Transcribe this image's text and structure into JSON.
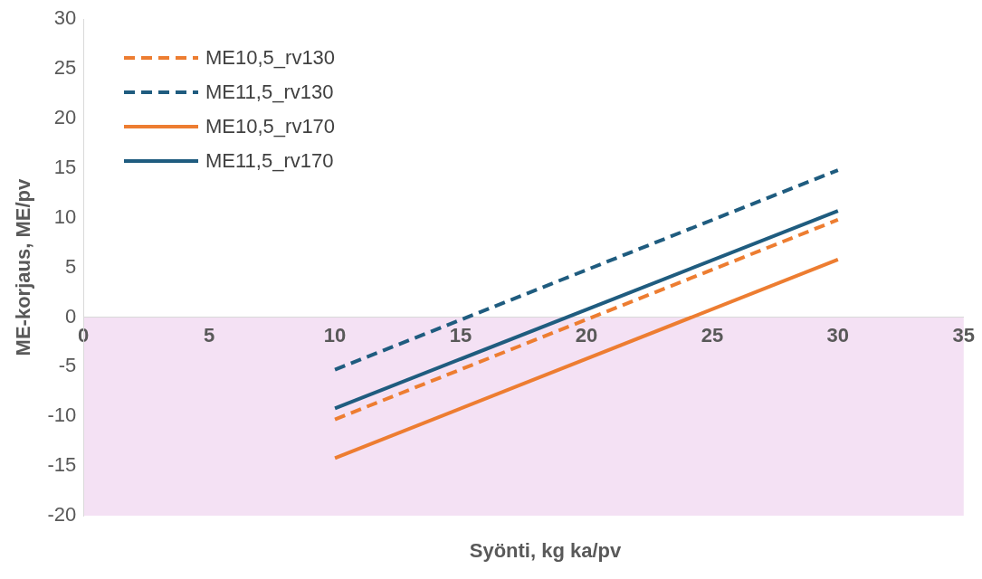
{
  "chart_data": {
    "type": "line",
    "xlabel": "Syönti, kg ka/pv",
    "ylabel": "ME-korjaus, ME/pv",
    "x": [
      10,
      30
    ],
    "series": [
      {
        "name": "ME10,5_rv130",
        "color": "#ed7d31",
        "line_style": "dashed",
        "values": [
          -10.3,
          9.8
        ]
      },
      {
        "name": "ME11,5_rv130",
        "color": "#1f5c7f",
        "line_style": "dashed",
        "values": [
          -5.3,
          14.8
        ]
      },
      {
        "name": "ME10,5_rv170",
        "color": "#ed7d31",
        "line_style": "solid",
        "values": [
          -14.2,
          5.8
        ]
      },
      {
        "name": "ME11,5_rv170",
        "color": "#1f5c7f",
        "line_style": "solid",
        "values": [
          -9.2,
          10.7
        ]
      }
    ],
    "xlim": [
      0,
      35
    ],
    "xticks": [
      0,
      5,
      10,
      15,
      20,
      25,
      30,
      35
    ],
    "ylim": [
      -20,
      30
    ],
    "yticks": [
      -20,
      -15,
      -10,
      -5,
      0,
      5,
      10,
      15,
      20,
      25,
      30
    ],
    "bands": [
      {
        "axis": "y",
        "from": -20,
        "to": 0,
        "color": "#f4e1f4"
      }
    ],
    "grid": false,
    "legend": "top left",
    "marker": "none"
  }
}
